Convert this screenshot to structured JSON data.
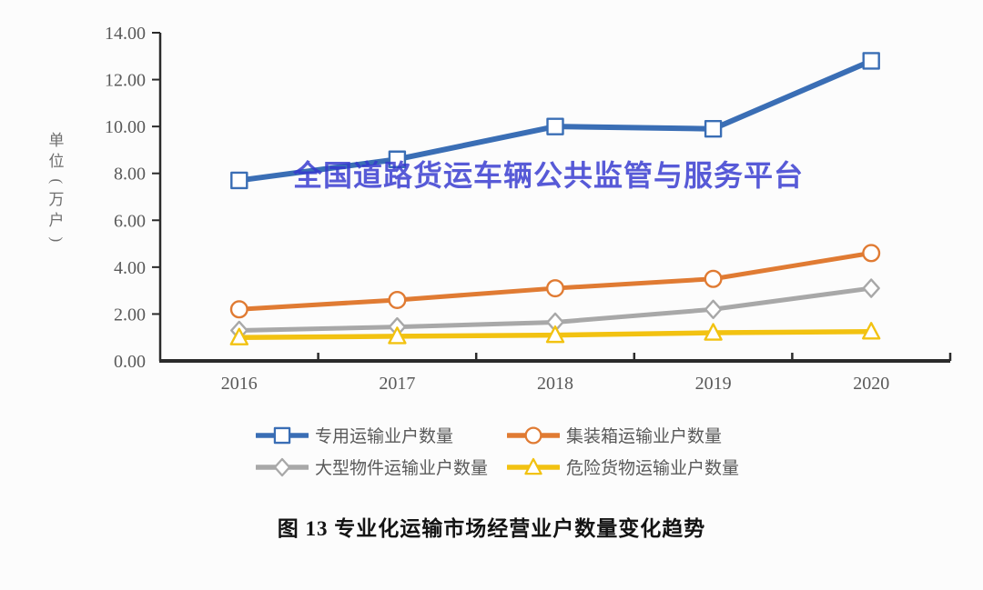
{
  "watermark": {
    "text": "全国道路货运车辆公共监管与服务平台",
    "color": "#3437cf"
  },
  "chart_data": {
    "type": "line",
    "title": "图 13 专业化运输市场经营业户数量变化趋势",
    "ylabel": "单位（万户）",
    "xlabel": "",
    "categories": [
      "2016",
      "2017",
      "2018",
      "2019",
      "2020"
    ],
    "ylim": [
      0,
      14
    ],
    "ytick_step": 2,
    "ytick_labels": [
      "0.00",
      "2.00",
      "4.00",
      "6.00",
      "8.00",
      "10.00",
      "12.00",
      "14.00"
    ],
    "grid": false,
    "legend_position": "bottom",
    "axis_color": "#2b2b2b",
    "tick_label_color": "#595959",
    "series": [
      {
        "name": "专用运输业户数量",
        "marker": "square",
        "color": "#3a6eb5",
        "values": [
          7.7,
          8.6,
          10.0,
          9.9,
          12.8
        ]
      },
      {
        "name": "集装箱运输业户数量",
        "marker": "circle",
        "color": "#e07b33",
        "values": [
          2.2,
          2.6,
          3.1,
          3.5,
          4.6
        ]
      },
      {
        "name": "大型物件运输业户数量",
        "marker": "diamond",
        "color": "#a8a8a8",
        "values": [
          1.3,
          1.45,
          1.65,
          2.2,
          3.1
        ]
      },
      {
        "name": "危险货物运输业户数量",
        "marker": "triangle",
        "color": "#f2c211",
        "values": [
          1.0,
          1.05,
          1.1,
          1.2,
          1.25
        ]
      }
    ]
  }
}
